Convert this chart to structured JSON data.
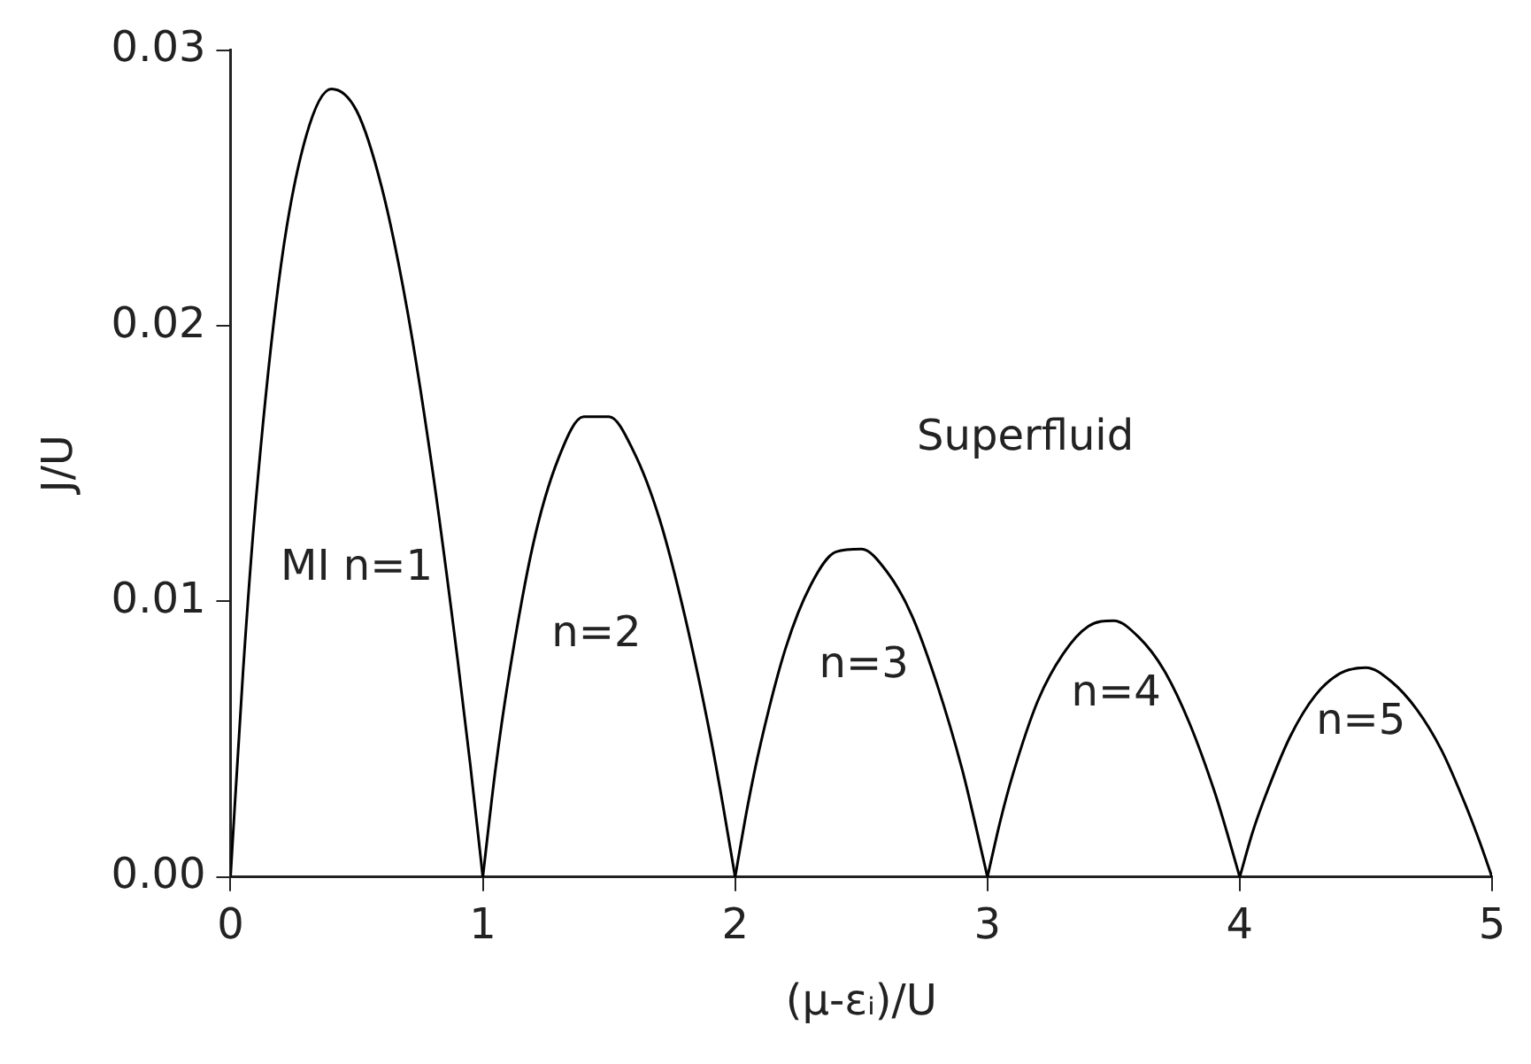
{
  "chart_data": {
    "type": "line",
    "xlabel": "(μ-εᵢ)/U",
    "ylabel": "J/U",
    "xlim": [
      0,
      5
    ],
    "xticks": [
      0,
      1,
      2,
      3,
      4,
      5
    ],
    "ylim": [
      0,
      0.03
    ],
    "yticks": [
      {
        "value": 0,
        "label": "0.00"
      },
      0.01,
      0.02,
      0.03
    ],
    "grid": false,
    "legend": false,
    "marker": "none",
    "line_style": "solid",
    "series": [
      {
        "color": "#000000",
        "x": [
          0,
          0.05,
          0.1,
          0.2,
          0.3,
          0.4,
          0.5,
          0.6,
          0.7,
          0.8,
          0.9,
          0.95,
          1
        ],
        "values": [
          0,
          0.0075,
          0.0136,
          0.0222,
          0.0269,
          0.0286,
          0.0278,
          0.025,
          0.0206,
          0.0148,
          0.0079,
          0.0041,
          0
        ]
      },
      {
        "color": "#000000",
        "x": [
          1,
          1.05,
          1.1,
          1.2,
          1.3,
          1.4,
          1.5,
          1.6,
          1.7,
          1.8,
          1.9,
          1.95,
          2
        ],
        "values": [
          0,
          0.0039,
          0.0071,
          0.0121,
          0.0152,
          0.0167,
          0.0167,
          0.0154,
          0.013,
          0.0095,
          0.0052,
          0.0027,
          0
        ]
      },
      {
        "color": "#000000",
        "x": [
          2,
          2.05,
          2.1,
          2.2,
          2.3,
          2.4,
          2.5,
          2.6,
          2.7,
          2.8,
          2.9,
          2.95,
          3
        ],
        "values": [
          0,
          0.0026,
          0.0048,
          0.0083,
          0.0106,
          0.0118,
          0.0119,
          0.0111,
          0.0095,
          0.007,
          0.0039,
          0.002,
          0
        ]
      },
      {
        "color": "#000000",
        "x": [
          3,
          3.05,
          3.1,
          3.2,
          3.3,
          3.4,
          3.5,
          3.6,
          3.7,
          3.8,
          3.9,
          3.95,
          4
        ],
        "values": [
          0,
          0.002,
          0.0037,
          0.0064,
          0.0081,
          0.0091,
          0.0093,
          0.0087,
          0.0075,
          0.0056,
          0.0031,
          0.0016,
          0
        ]
      },
      {
        "color": "#000000",
        "x": [
          4,
          4.05,
          4.1,
          4.2,
          4.3,
          4.4,
          4.5,
          4.6,
          4.7,
          4.8,
          4.9,
          4.95,
          5
        ],
        "values": [
          0,
          0.0016,
          0.0029,
          0.0051,
          0.0066,
          0.0074,
          0.0076,
          0.0071,
          0.0061,
          0.0046,
          0.0025,
          0.0013,
          0
        ]
      }
    ],
    "annotations": [
      "MI n=1",
      "n=2",
      "n=3",
      "n=4",
      "n=5",
      "Superfluid"
    ]
  }
}
